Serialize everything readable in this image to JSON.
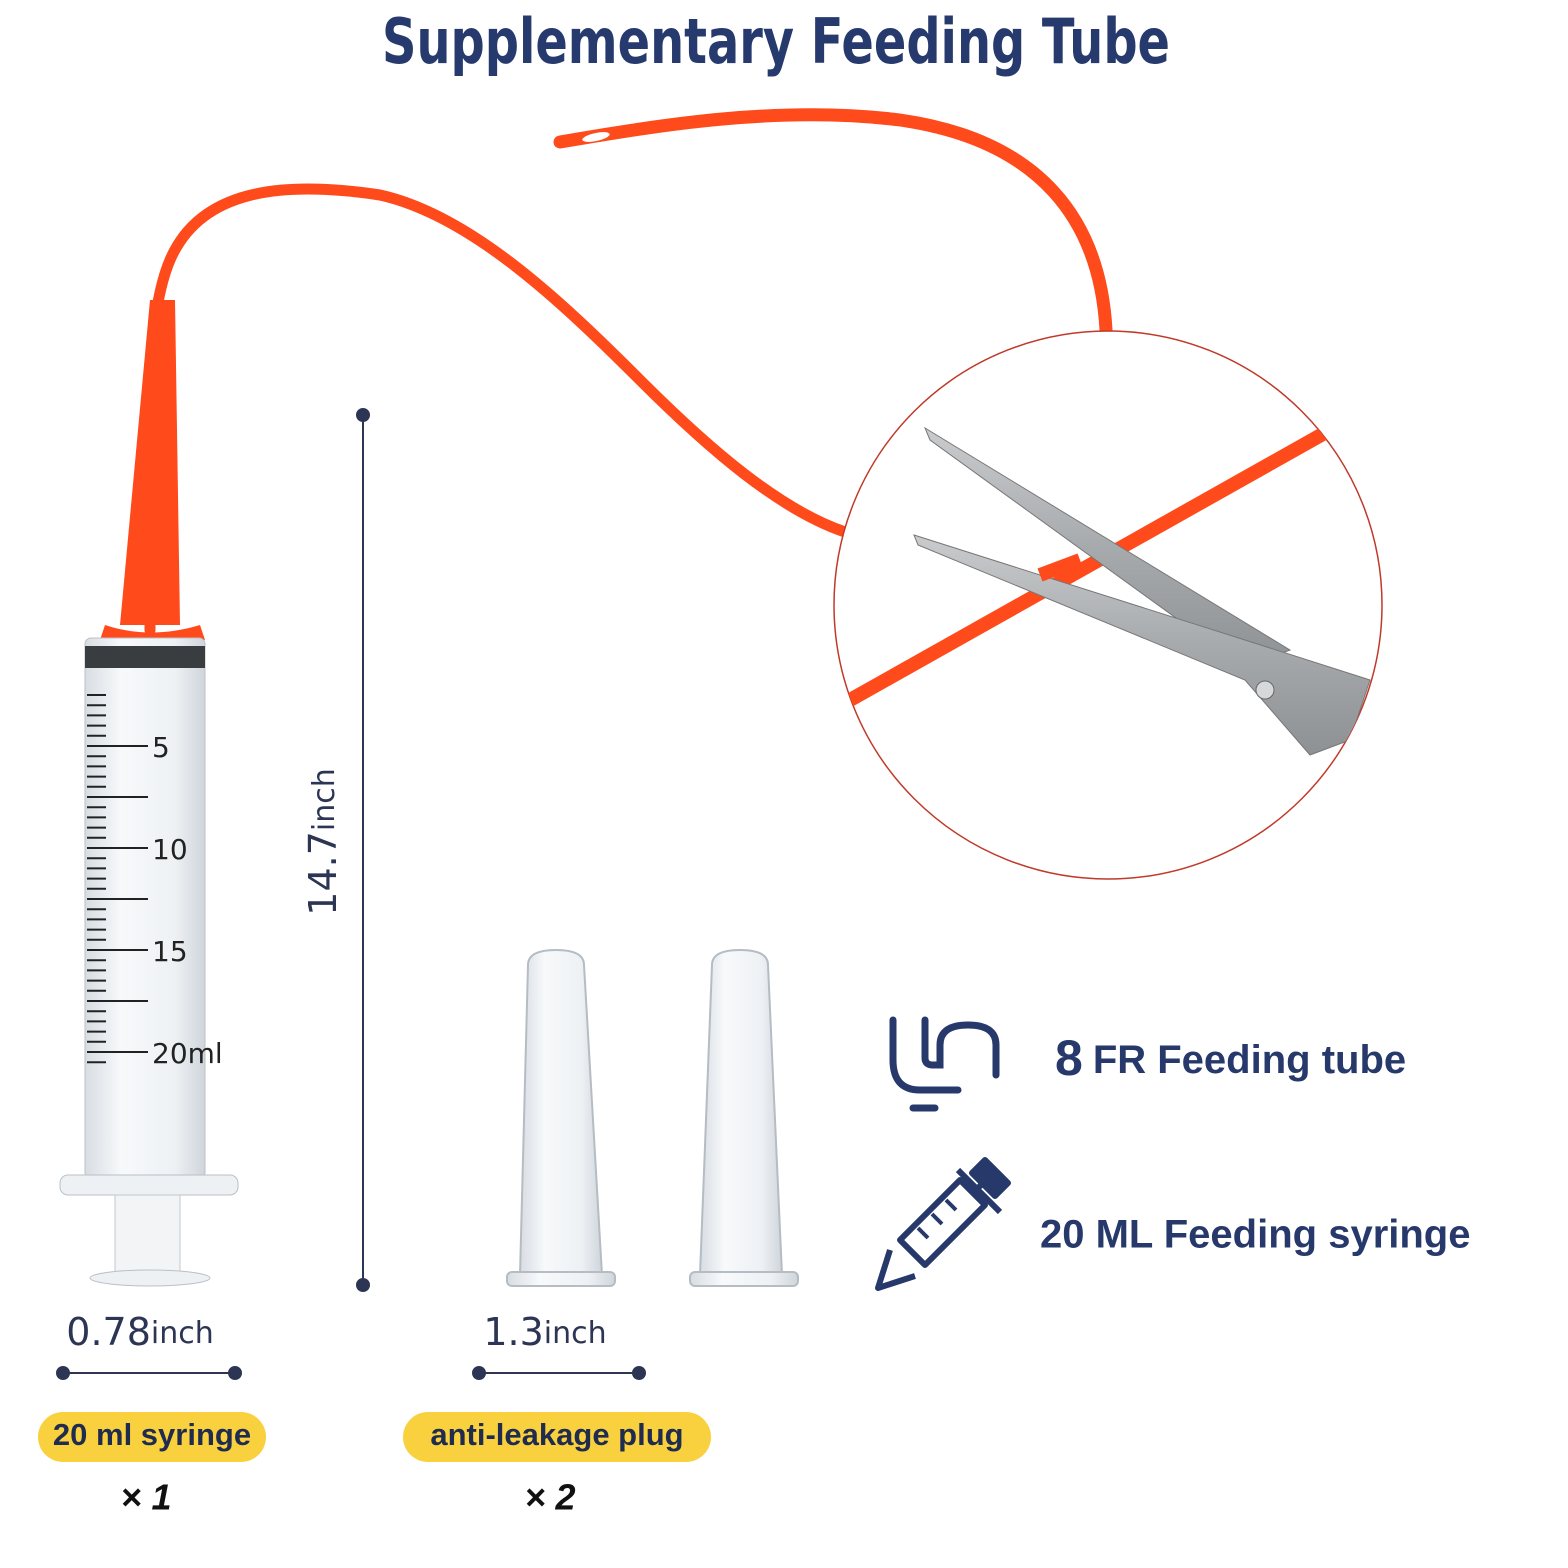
{
  "header": {
    "title": "Supplementary Feeding Tube"
  },
  "syringe": {
    "scale_labels": [
      "5",
      "10",
      "15",
      "20ml"
    ]
  },
  "dimensions": {
    "tube_length": {
      "number": "14.7",
      "unit": "inch"
    },
    "syringe_width": {
      "number": "0.78",
      "unit": "inch"
    },
    "plug_width": {
      "number": "1.3",
      "unit": "inch"
    }
  },
  "items": [
    {
      "label": "20 ml syringe",
      "quantity": "× 1"
    },
    {
      "label": "anti-leakage plug",
      "quantity": "× 2"
    }
  ],
  "features": [
    {
      "number": "8",
      "text": "FR Feeding tube"
    },
    {
      "text": "20 ML Feeding syringe"
    }
  ]
}
